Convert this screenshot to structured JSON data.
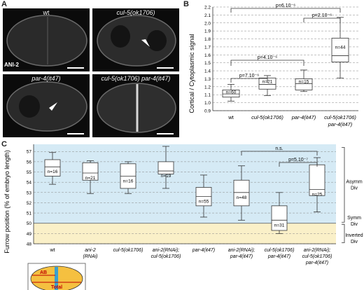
{
  "panels": {
    "A": {
      "letter": "A",
      "stain": "ANI-2",
      "images": [
        {
          "label": "wt",
          "italic": false,
          "arrowhead": false
        },
        {
          "label": "cul-5(ok1706)",
          "italic": true,
          "arrowhead": true
        },
        {
          "label": "par-4(it47)",
          "italic": true,
          "arrowhead": true
        },
        {
          "label": "cul-5(ok1706) par-4(it47)",
          "italic": true,
          "arrowhead": false
        }
      ]
    },
    "B": {
      "letter": "B",
      "ylabel": "Cortical / Cytoplasmic signal",
      "comparisons": [
        {
          "label": "p=6.10⁻⁶"
        },
        {
          "label": "p=2.10⁻⁶"
        },
        {
          "label": "p=4.10⁻⁶"
        },
        {
          "label": "p=7.10⁻⁶"
        }
      ]
    },
    "C": {
      "letter": "C",
      "ylabel": "Furrow position (% of embryo length)",
      "comparisons": [
        {
          "label": "n.s."
        },
        {
          "label": "p=5.10⁻⁷"
        }
      ],
      "zones": {
        "asym": "Asymm\nDiv",
        "sym": "Symm\nDiv",
        "inv": "Inverted\nDiv"
      },
      "inset": {
        "ab": "AB",
        "total": "Total"
      }
    }
  },
  "chart_data": [
    {
      "type": "box",
      "panel": "B",
      "ylabel": "Cortical / Cytoplasmic signal",
      "ylim": [
        0.9,
        2.2
      ],
      "yticks": [
        0.9,
        1.0,
        1.1,
        1.2,
        1.3,
        1.4,
        1.5,
        1.6,
        1.7,
        1.8,
        1.9,
        2.0,
        2.1,
        2.2
      ],
      "grid": true,
      "categories": [
        "wt",
        "cul-5(ok1706)",
        "par-4(it47)",
        "cul-5(ok1706) par-4(it47)"
      ],
      "series": [
        {
          "n_label": "n=60",
          "min": 1.02,
          "q1": 1.07,
          "median": 1.11,
          "q3": 1.16,
          "max": 1.23
        },
        {
          "n_label": "n=21",
          "min": 1.09,
          "q1": 1.17,
          "median": 1.23,
          "q3": 1.31,
          "max": 1.34
        },
        {
          "n_label": "n=15",
          "min": 1.14,
          "q1": 1.16,
          "median": 1.24,
          "q3": 1.3,
          "max": 1.41
        },
        {
          "n_label": "n=44",
          "min": 1.31,
          "q1": 1.51,
          "median": 1.59,
          "q3": 1.81,
          "max": 2.07
        }
      ]
    },
    {
      "type": "box",
      "panel": "C",
      "ylabel": "Furrow position (% of embryo length)",
      "ylim": [
        48,
        57.7
      ],
      "yticks": [
        48,
        49,
        50,
        51,
        52,
        53,
        54,
        55,
        56,
        57
      ],
      "grid": true,
      "categories": [
        "wt",
        "ani-2 (RNAi)",
        "cul-5(ok1706)",
        "ani-2(RNAi); cul-5(ok1706)",
        "par-4(it47)",
        "ani-2(RNAi); par-4(it47)",
        "cul-5(ok1706) par-4(it47)",
        "ani-2(RNAi); cul-5(ok1706) par-4(it47)"
      ],
      "series": [
        {
          "n_label": "n=16",
          "min": 53.8,
          "q1": 54.6,
          "median": 55.5,
          "q3": 56.2,
          "max": 56.9
        },
        {
          "n_label": "n=21",
          "min": 52.9,
          "q1": 54.2,
          "median": 54.9,
          "q3": 55.9,
          "max": 56.1
        },
        {
          "n_label": "n=16",
          "min": 52.9,
          "q1": 53.4,
          "median": 54.6,
          "q3": 55.8,
          "max": 56.0
        },
        {
          "n_label": "n=19",
          "min": 53.4,
          "q1": 54.8,
          "median": 55.1,
          "q3": 56.0,
          "max": 57.5
        },
        {
          "n_label": "n=55",
          "min": 50.6,
          "q1": 51.7,
          "median": 52.6,
          "q3": 53.5,
          "max": 54.7
        },
        {
          "n_label": "n=48",
          "min": 50.3,
          "q1": 51.7,
          "median": 53.0,
          "q3": 54.2,
          "max": 55.6
        },
        {
          "n_label": "n=31",
          "min": 49.0,
          "q1": 49.3,
          "median": 50.3,
          "q3": 51.7,
          "max": 53.0
        },
        {
          "n_label": "n=25",
          "min": 51.1,
          "q1": 52.7,
          "median": 53.3,
          "q3": 55.7,
          "max": 56.4
        }
      ]
    }
  ]
}
